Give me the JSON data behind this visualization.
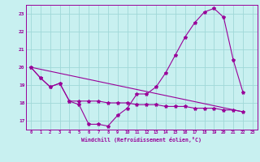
{
  "title": "",
  "xlabel": "Windchill (Refroidissement éolien,°C)",
  "bg_color": "#c8f0f0",
  "grid_color": "#a0d8d8",
  "line_color": "#990099",
  "line1_x": [
    0,
    1,
    2,
    3,
    4,
    5,
    6,
    7,
    8,
    9,
    10,
    11,
    12,
    13,
    14,
    15,
    16,
    17,
    18,
    19,
    20,
    21,
    22
  ],
  "line1_y": [
    20.0,
    19.4,
    18.9,
    19.1,
    18.1,
    17.9,
    16.8,
    16.8,
    16.7,
    17.3,
    17.7,
    18.5,
    18.5,
    18.9,
    19.7,
    20.7,
    21.7,
    22.5,
    23.1,
    23.3,
    22.8,
    20.4,
    18.6
  ],
  "line2_x": [
    0,
    1,
    2,
    3,
    4,
    5,
    6,
    7,
    8,
    9,
    10,
    11,
    12,
    13,
    14,
    15,
    16,
    17,
    18,
    19,
    20,
    21,
    22
  ],
  "line2_y": [
    20.0,
    19.4,
    18.9,
    19.1,
    18.1,
    18.1,
    18.1,
    18.1,
    18.0,
    18.0,
    18.0,
    17.9,
    17.9,
    17.9,
    17.8,
    17.8,
    17.8,
    17.7,
    17.7,
    17.7,
    17.6,
    17.6,
    17.5
  ],
  "line3_x": [
    0,
    22
  ],
  "line3_y": [
    20.0,
    17.5
  ],
  "ylim": [
    16.5,
    23.5
  ],
  "xlim": [
    -0.5,
    23.5
  ],
  "xticks": [
    0,
    1,
    2,
    3,
    4,
    5,
    6,
    7,
    8,
    9,
    10,
    11,
    12,
    13,
    14,
    15,
    16,
    17,
    18,
    19,
    20,
    21,
    22,
    23
  ],
  "yticks": [
    17,
    18,
    19,
    20,
    21,
    22,
    23
  ]
}
